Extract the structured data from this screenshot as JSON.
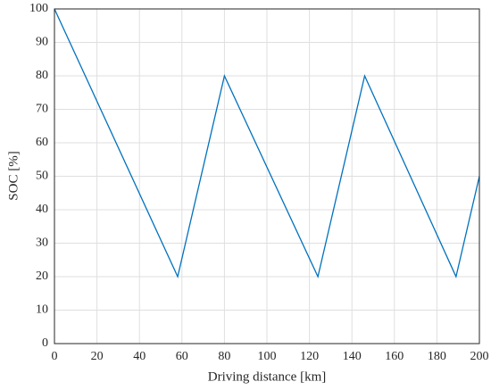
{
  "chart_data": {
    "type": "line",
    "xlabel": "Driving distance [km]",
    "ylabel": "SOC [%]",
    "x": [
      0,
      58,
      80,
      124,
      146,
      189,
      200
    ],
    "series": [
      {
        "color": "#0072bd",
        "values": [
          100,
          20,
          80,
          20,
          80,
          20,
          50
        ]
      }
    ],
    "xlim": [
      0,
      200
    ],
    "xticks": [
      0,
      20,
      40,
      60,
      80,
      100,
      120,
      140,
      160,
      180,
      200
    ],
    "ylim": [
      0,
      100
    ],
    "yticks": [
      0,
      10,
      20,
      30,
      40,
      50,
      60,
      70,
      80,
      90,
      100
    ],
    "grid": true
  }
}
